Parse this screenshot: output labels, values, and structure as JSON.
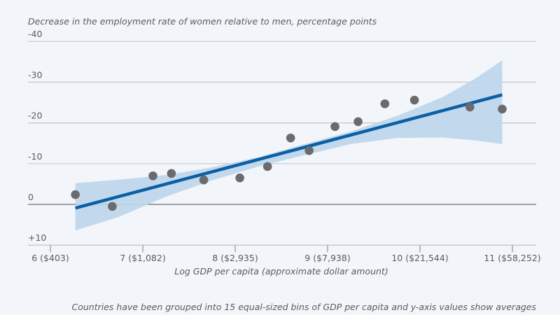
{
  "chart_data": {
    "type": "scatter",
    "title": "",
    "ylabel": "Decrease in the employment rate of women relative to men, percentage points",
    "xlabel": "Log GDP per capita (approximate dollar amount)",
    "caption": "Countries have been grouped into 15 equal-sized bins of GDP per capita and y-axis values show averages",
    "xlim": [
      5.76,
      11.25
    ],
    "ylim": [
      10,
      -40
    ],
    "y_inverted": true,
    "grid": true,
    "y_ticks": [
      {
        "value": -40,
        "label": "-40"
      },
      {
        "value": -30,
        "label": "-30"
      },
      {
        "value": -20,
        "label": "-20"
      },
      {
        "value": -10,
        "label": "-10"
      },
      {
        "value": 0,
        "label": "0"
      },
      {
        "value": 10,
        "label": "+10"
      }
    ],
    "x_ticks": [
      {
        "value": 6,
        "label": "6 ($403)"
      },
      {
        "value": 7,
        "label": "7 ($1,082)"
      },
      {
        "value": 8,
        "label": "8 ($2,935)"
      },
      {
        "value": 9,
        "label": "9 ($7,938)"
      },
      {
        "value": 10,
        "label": "10 ($21,544)"
      },
      {
        "value": 11,
        "label": "11 ($58,252)"
      }
    ],
    "series": [
      {
        "name": "Binned averages",
        "kind": "scatter",
        "color": "#6b6b6e",
        "points": [
          {
            "x": 6.27,
            "y": -2.4
          },
          {
            "x": 6.67,
            "y": 0.5
          },
          {
            "x": 7.11,
            "y": -7.0
          },
          {
            "x": 7.31,
            "y": -7.6
          },
          {
            "x": 7.66,
            "y": -6.0
          },
          {
            "x": 8.05,
            "y": -6.5
          },
          {
            "x": 8.35,
            "y": -9.3
          },
          {
            "x": 8.6,
            "y": -16.3
          },
          {
            "x": 8.8,
            "y": -13.2
          },
          {
            "x": 9.08,
            "y": -19.1
          },
          {
            "x": 9.33,
            "y": -20.3
          },
          {
            "x": 9.62,
            "y": -24.7
          },
          {
            "x": 9.94,
            "y": -25.6
          },
          {
            "x": 10.54,
            "y": -23.9
          },
          {
            "x": 10.89,
            "y": -23.4
          }
        ]
      },
      {
        "name": "Fitted line",
        "kind": "line",
        "color": "#0b5fa5",
        "points": [
          {
            "x": 6.27,
            "y": 0.9
          },
          {
            "x": 10.89,
            "y": -26.9
          }
        ]
      },
      {
        "name": "95% confidence band",
        "kind": "band",
        "color": "#bcd5ea",
        "points": [
          {
            "x": 6.27,
            "low": 6.4,
            "high": -5.2
          },
          {
            "x": 6.75,
            "low": 3.0,
            "high": -6.1
          },
          {
            "x": 7.25,
            "low": -1.9,
            "high": -7.2
          },
          {
            "x": 7.75,
            "low": -5.9,
            "high": -9.1
          },
          {
            "x": 8.25,
            "low": -9.3,
            "high": -11.6
          },
          {
            "x": 8.75,
            "low": -12.1,
            "high": -14.8
          },
          {
            "x": 9.25,
            "low": -14.8,
            "high": -17.9
          },
          {
            "x": 9.75,
            "low": -16.3,
            "high": -21.7
          },
          {
            "x": 10.25,
            "low": -16.4,
            "high": -26.4
          },
          {
            "x": 10.6,
            "low": -15.7,
            "high": -30.9
          },
          {
            "x": 10.89,
            "low": -14.8,
            "high": -35.4
          }
        ]
      }
    ]
  }
}
